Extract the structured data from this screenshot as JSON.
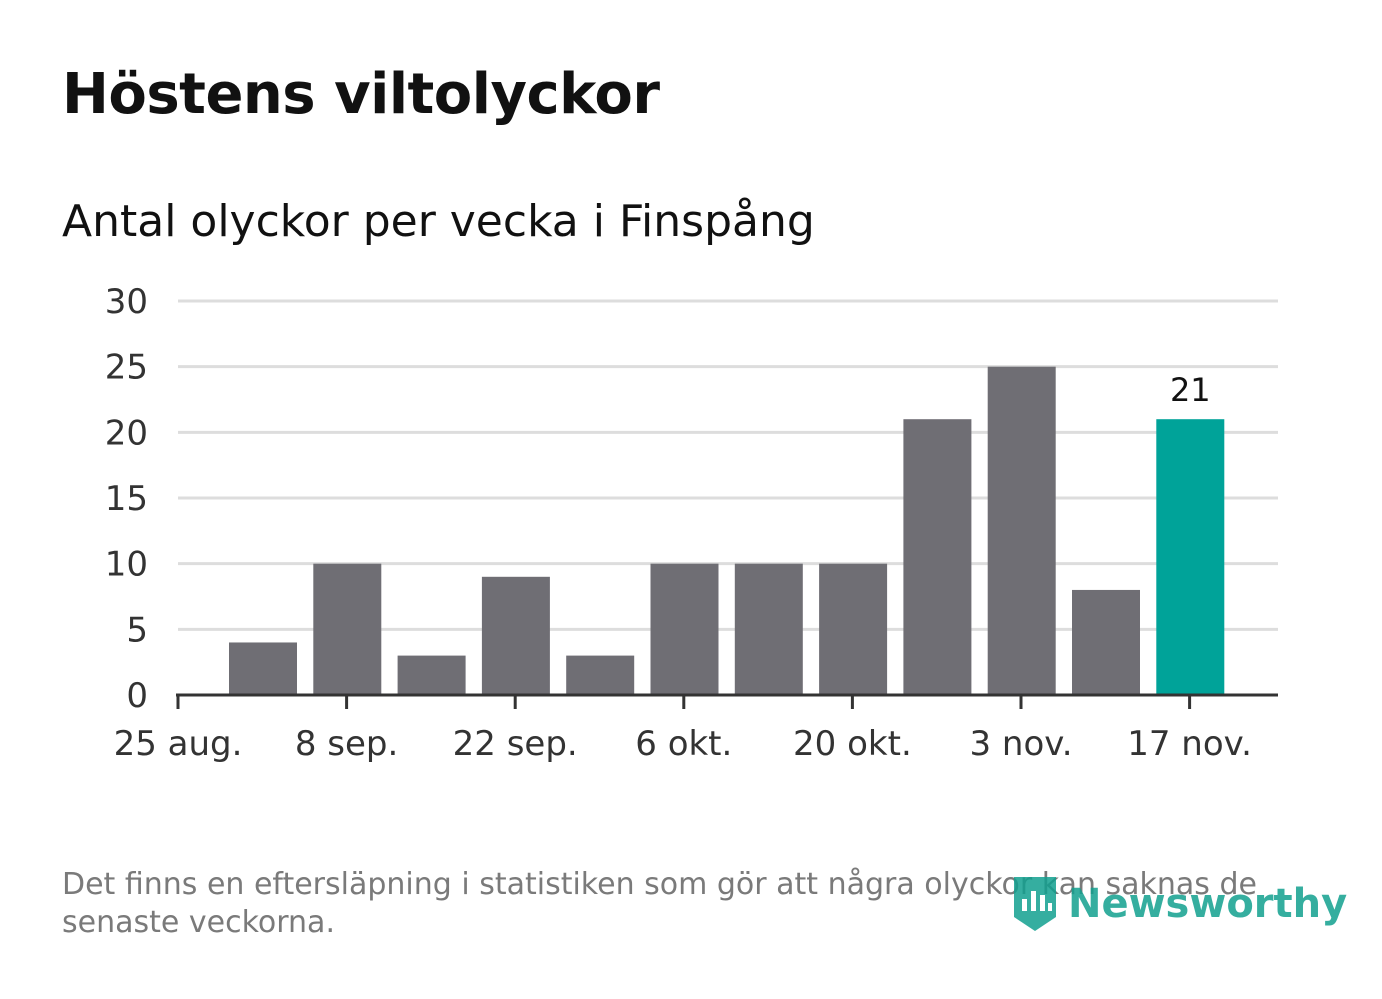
{
  "title": "Höstens viltolyckor",
  "subtitle": "Antal olyckor per vecka i Finspång",
  "footnote": "Det finns en eftersläpning i statistiken som gör att några olyckor kan saknas de senaste veckorna.",
  "logo": {
    "text": "Newsworthy",
    "icon": "newsworthy-logo-icon"
  },
  "colors": {
    "bar": "#6f6e74",
    "highlight": "#00a399",
    "grid": "#dddddd",
    "axis": "#333333"
  },
  "chart_data": {
    "type": "bar",
    "categories": [
      "25 aug.",
      "1 sep.",
      "8 sep.",
      "15 sep.",
      "22 sep.",
      "29 sep.",
      "6 okt.",
      "13 okt.",
      "20 okt.",
      "27 okt.",
      "3 nov.",
      "10 nov.",
      "17 nov."
    ],
    "values": [
      null,
      4,
      10,
      3,
      9,
      3,
      10,
      10,
      10,
      21,
      25,
      8,
      21
    ],
    "highlight_index": 12,
    "value_labels": [
      {
        "index": 12,
        "label": "21"
      }
    ],
    "x_tick_labels": [
      "25 aug.",
      "8 sep.",
      "22 sep.",
      "6 okt.",
      "20 okt.",
      "3 nov.",
      "17 nov."
    ],
    "y_ticks": [
      0,
      5,
      10,
      15,
      20,
      25,
      30
    ],
    "ylim": [
      0,
      30
    ],
    "grid": true,
    "legend": "none"
  }
}
